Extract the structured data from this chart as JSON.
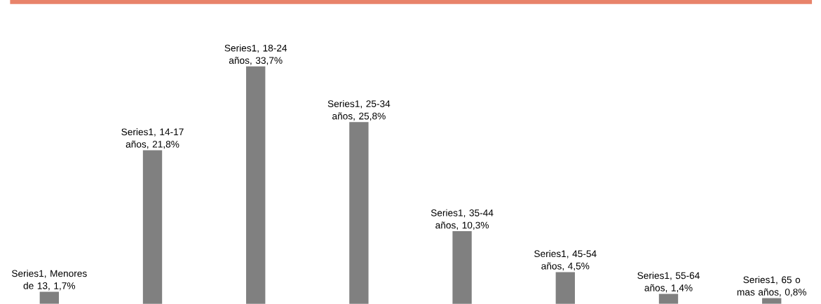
{
  "chart_data": {
    "type": "bar",
    "categories": [
      null,
      null,
      null,
      null,
      null,
      null,
      null,
      null
    ],
    "series": [
      {
        "color": "#808080",
        "values": [
          1.7,
          21.8,
          33.7,
          25.8,
          10.3,
          4.5,
          1.4,
          0.8
        ],
        "value_labels": [
          "Series1, Menores de 13, 1,7%",
          "Series1, 14-17 años, 21,8%",
          "Series1, 18-24 años, 33,7%",
          "Series1, 25-34 años, 25,8%",
          "Series1, 35-44 años, 10,3%",
          "Series1, 45-54 años, 4,5%",
          "Series1, 55-64 años, 1,4%",
          "Series1, 65 o mas años, 0,8%"
        ]
      }
    ]
  }
}
